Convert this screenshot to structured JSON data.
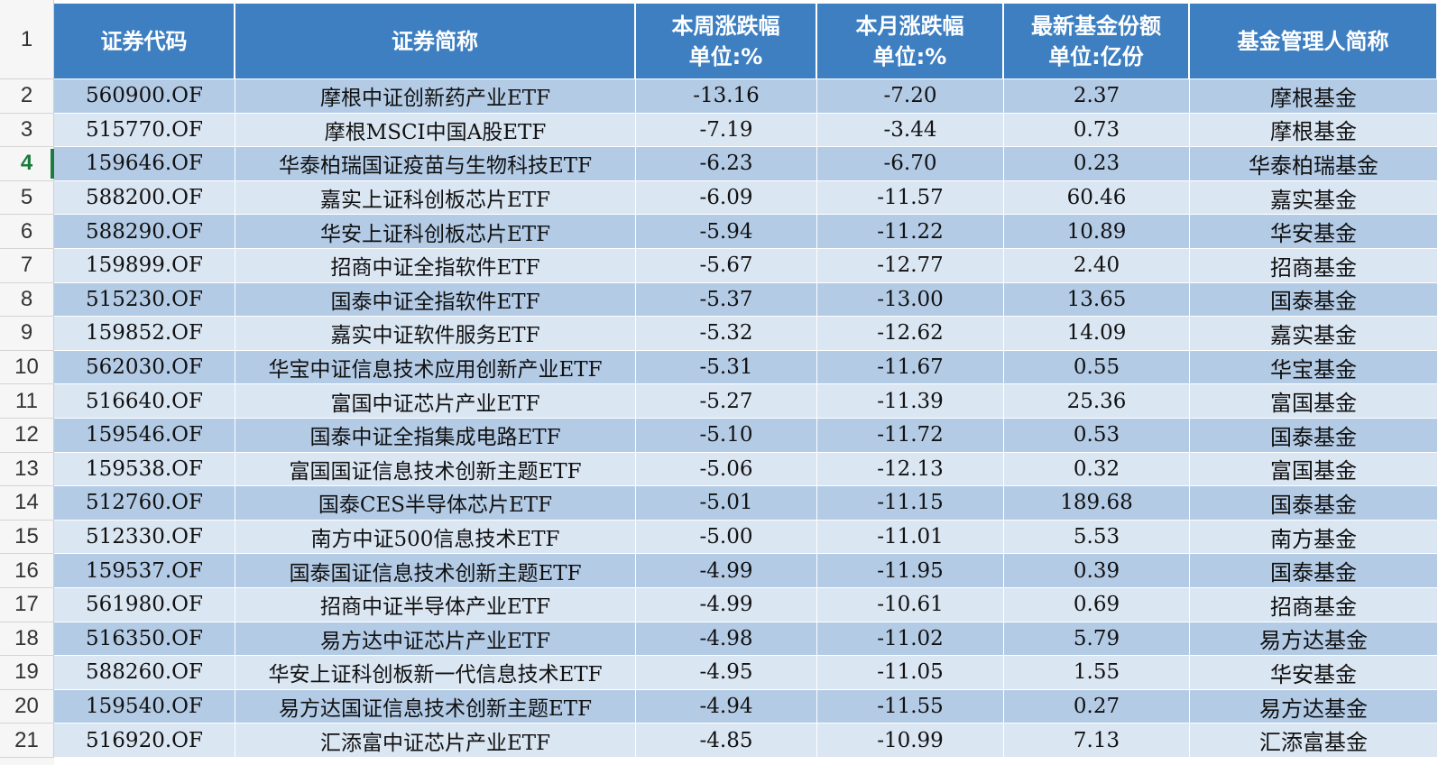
{
  "header": {
    "row_number": "1",
    "columns": [
      {
        "line1": "证券代码",
        "line2": ""
      },
      {
        "line1": "证券简称",
        "line2": ""
      },
      {
        "line1": "本周涨跌幅",
        "line2": "单位:%"
      },
      {
        "line1": "本月涨跌幅",
        "line2": "单位:%"
      },
      {
        "line1": "最新基金份额",
        "line2": "单位:亿份"
      },
      {
        "line1": "基金管理人简称",
        "line2": ""
      }
    ]
  },
  "active_row": "4",
  "rows": [
    {
      "num": "2",
      "code": "560900.OF",
      "name": "摩根中证创新药产业ETF",
      "week": "-13.16",
      "month": "-7.20",
      "shares": "2.37",
      "manager": "摩根基金"
    },
    {
      "num": "3",
      "code": "515770.OF",
      "name": "摩根MSCI中国A股ETF",
      "week": "-7.19",
      "month": "-3.44",
      "shares": "0.73",
      "manager": "摩根基金"
    },
    {
      "num": "4",
      "code": "159646.OF",
      "name": "华泰柏瑞国证疫苗与生物科技ETF",
      "week": "-6.23",
      "month": "-6.70",
      "shares": "0.23",
      "manager": "华泰柏瑞基金"
    },
    {
      "num": "5",
      "code": "588200.OF",
      "name": "嘉实上证科创板芯片ETF",
      "week": "-6.09",
      "month": "-11.57",
      "shares": "60.46",
      "manager": "嘉实基金"
    },
    {
      "num": "6",
      "code": "588290.OF",
      "name": "华安上证科创板芯片ETF",
      "week": "-5.94",
      "month": "-11.22",
      "shares": "10.89",
      "manager": "华安基金"
    },
    {
      "num": "7",
      "code": "159899.OF",
      "name": "招商中证全指软件ETF",
      "week": "-5.67",
      "month": "-12.77",
      "shares": "2.40",
      "manager": "招商基金"
    },
    {
      "num": "8",
      "code": "515230.OF",
      "name": "国泰中证全指软件ETF",
      "week": "-5.37",
      "month": "-13.00",
      "shares": "13.65",
      "manager": "国泰基金"
    },
    {
      "num": "9",
      "code": "159852.OF",
      "name": "嘉实中证软件服务ETF",
      "week": "-5.32",
      "month": "-12.62",
      "shares": "14.09",
      "manager": "嘉实基金"
    },
    {
      "num": "10",
      "code": "562030.OF",
      "name": "华宝中证信息技术应用创新产业ETF",
      "week": "-5.31",
      "month": "-11.67",
      "shares": "0.55",
      "manager": "华宝基金"
    },
    {
      "num": "11",
      "code": "516640.OF",
      "name": "富国中证芯片产业ETF",
      "week": "-5.27",
      "month": "-11.39",
      "shares": "25.36",
      "manager": "富国基金"
    },
    {
      "num": "12",
      "code": "159546.OF",
      "name": "国泰中证全指集成电路ETF",
      "week": "-5.10",
      "month": "-11.72",
      "shares": "0.53",
      "manager": "国泰基金"
    },
    {
      "num": "13",
      "code": "159538.OF",
      "name": "富国国证信息技术创新主题ETF",
      "week": "-5.06",
      "month": "-12.13",
      "shares": "0.32",
      "manager": "富国基金"
    },
    {
      "num": "14",
      "code": "512760.OF",
      "name": "国泰CES半导体芯片ETF",
      "week": "-5.01",
      "month": "-11.15",
      "shares": "189.68",
      "manager": "国泰基金"
    },
    {
      "num": "15",
      "code": "512330.OF",
      "name": "南方中证500信息技术ETF",
      "week": "-5.00",
      "month": "-11.01",
      "shares": "5.53",
      "manager": "南方基金"
    },
    {
      "num": "16",
      "code": "159537.OF",
      "name": "国泰国证信息技术创新主题ETF",
      "week": "-4.99",
      "month": "-11.95",
      "shares": "0.39",
      "manager": "国泰基金"
    },
    {
      "num": "17",
      "code": "561980.OF",
      "name": "招商中证半导体产业ETF",
      "week": "-4.99",
      "month": "-10.61",
      "shares": "0.69",
      "manager": "招商基金"
    },
    {
      "num": "18",
      "code": "516350.OF",
      "name": "易方达中证芯片产业ETF",
      "week": "-4.98",
      "month": "-11.02",
      "shares": "5.79",
      "manager": "易方达基金"
    },
    {
      "num": "19",
      "code": "588260.OF",
      "name": "华安上证科创板新一代信息技术ETF",
      "week": "-4.95",
      "month": "-11.05",
      "shares": "1.55",
      "manager": "华安基金"
    },
    {
      "num": "20",
      "code": "159540.OF",
      "name": "易方达国证信息技术创新主题ETF",
      "week": "-4.94",
      "month": "-11.55",
      "shares": "0.27",
      "manager": "易方达基金"
    },
    {
      "num": "21",
      "code": "516920.OF",
      "name": "汇添富中证芯片产业ETF",
      "week": "-4.85",
      "month": "-10.99",
      "shares": "7.13",
      "manager": "汇添富基金"
    }
  ],
  "colors": {
    "header_bg": "#3d7fc1",
    "row_odd_bg": "#b4cbe6",
    "row_even_bg": "#dbe6f3",
    "active_row_marker": "#1e7b3f"
  }
}
